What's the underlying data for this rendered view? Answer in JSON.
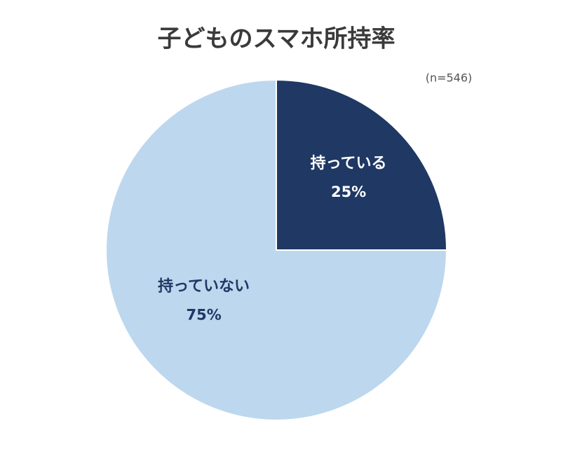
{
  "chart_data": {
    "type": "pie",
    "title": "子どものスマホ所持率",
    "subtitle": "(n=546)",
    "categories": [
      "持っている",
      "持っていない"
    ],
    "values": [
      25,
      75
    ],
    "value_labels": [
      "25%",
      "75%"
    ],
    "colors": [
      "#1f3864",
      "#bdd7ee"
    ]
  }
}
